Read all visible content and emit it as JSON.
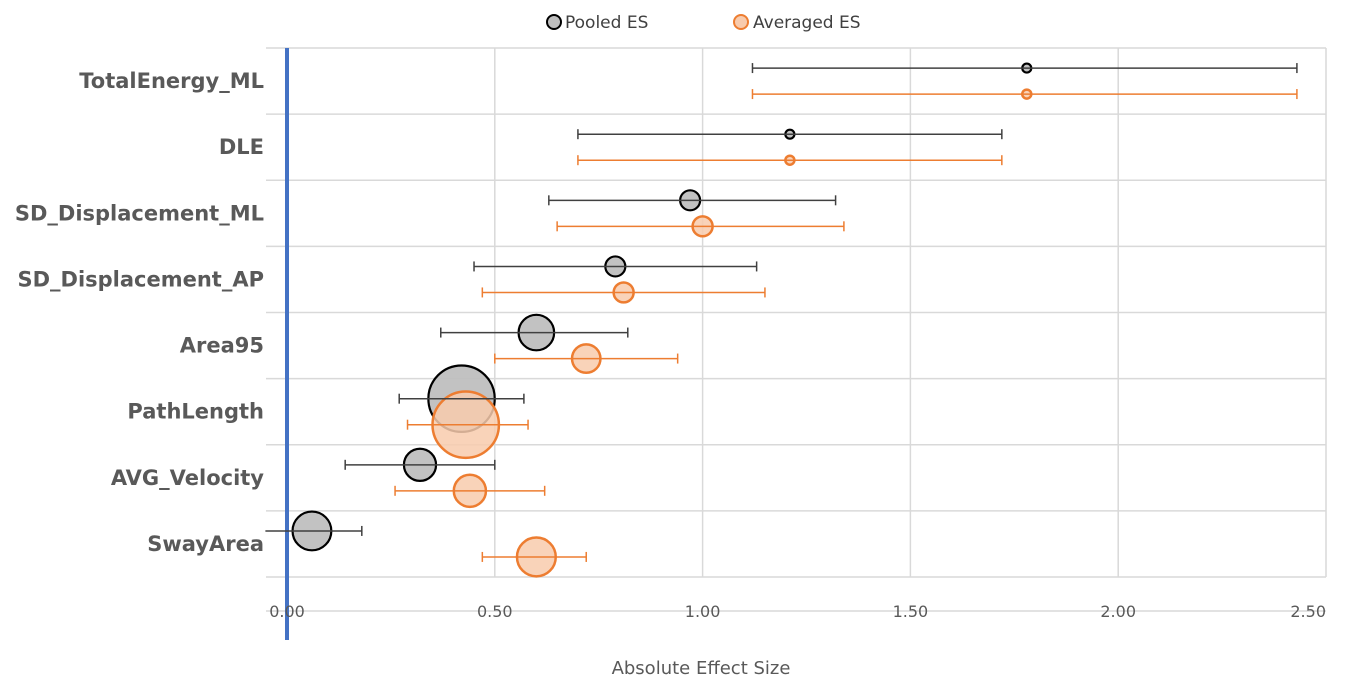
{
  "chart_data": {
    "type": "scatter",
    "title": "",
    "xlabel": "Absolute Effect Size",
    "ylabel": "",
    "xlim": [
      0,
      2.5
    ],
    "x_ticks": [
      "0.00",
      "0.50",
      "1.00",
      "1.50",
      "2.00",
      "2.50"
    ],
    "grid": true,
    "legend_position": "top",
    "reference_line_x": 0,
    "reference_line_color": "#4472C4",
    "categories": [
      "TotalEnergy_ML",
      "DLE",
      "SD_Displacement_ML",
      "SD_Displacement_AP",
      "Area95",
      "PathLength",
      "AVG_Velocity",
      "SwayArea"
    ],
    "series": [
      {
        "name": "Pooled ES",
        "color": "#000000",
        "fill": "#bfbfbf",
        "values": [
          1.78,
          1.21,
          0.97,
          0.79,
          0.6,
          0.42,
          0.32,
          0.06
        ],
        "ci_low": [
          1.12,
          0.7,
          0.63,
          0.45,
          0.37,
          0.27,
          0.14,
          -0.07
        ],
        "ci_high": [
          2.43,
          1.72,
          1.32,
          1.13,
          0.82,
          0.57,
          0.5,
          0.18
        ],
        "relative_size": [
          1,
          1,
          2,
          2,
          4,
          10,
          3.5,
          4.5
        ]
      },
      {
        "name": "Averaged ES",
        "color": "#ED7D31",
        "fill": "#F8CBAD",
        "values": [
          1.78,
          1.21,
          1.0,
          0.81,
          0.72,
          0.43,
          0.44,
          0.6
        ],
        "ci_low": [
          1.12,
          0.7,
          0.65,
          0.47,
          0.5,
          0.29,
          0.26,
          0.47
        ],
        "ci_high": [
          2.43,
          1.72,
          1.34,
          1.15,
          0.94,
          0.58,
          0.62,
          0.72
        ],
        "relative_size": [
          1,
          1,
          2,
          2,
          3,
          10,
          3.5,
          4.5
        ]
      }
    ]
  }
}
